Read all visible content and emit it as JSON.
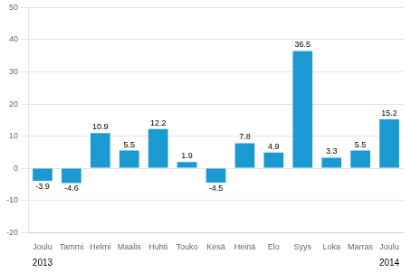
{
  "chart_data": {
    "type": "bar",
    "categories": [
      "Joulu",
      "Tammi",
      "Helmi",
      "Maalis",
      "Huhti",
      "Touko",
      "Kesä",
      "Heinä",
      "Elo",
      "Syys",
      "Loka",
      "Marras",
      "Joulu"
    ],
    "values": [
      -3.9,
      -4.6,
      10.9,
      5.5,
      12.2,
      1.9,
      -4.5,
      7.8,
      4.9,
      36.5,
      3.3,
      5.5,
      15.2
    ],
    "color": "#1b9ad2",
    "ylim": [
      -20,
      50
    ],
    "yticks": [
      -20,
      -10,
      0,
      10,
      20,
      30,
      40,
      50
    ],
    "grid": true,
    "data_labels": true,
    "annotations": [
      {
        "text": "2013",
        "x": 0
      },
      {
        "text": "2014",
        "x": 12
      }
    ]
  }
}
